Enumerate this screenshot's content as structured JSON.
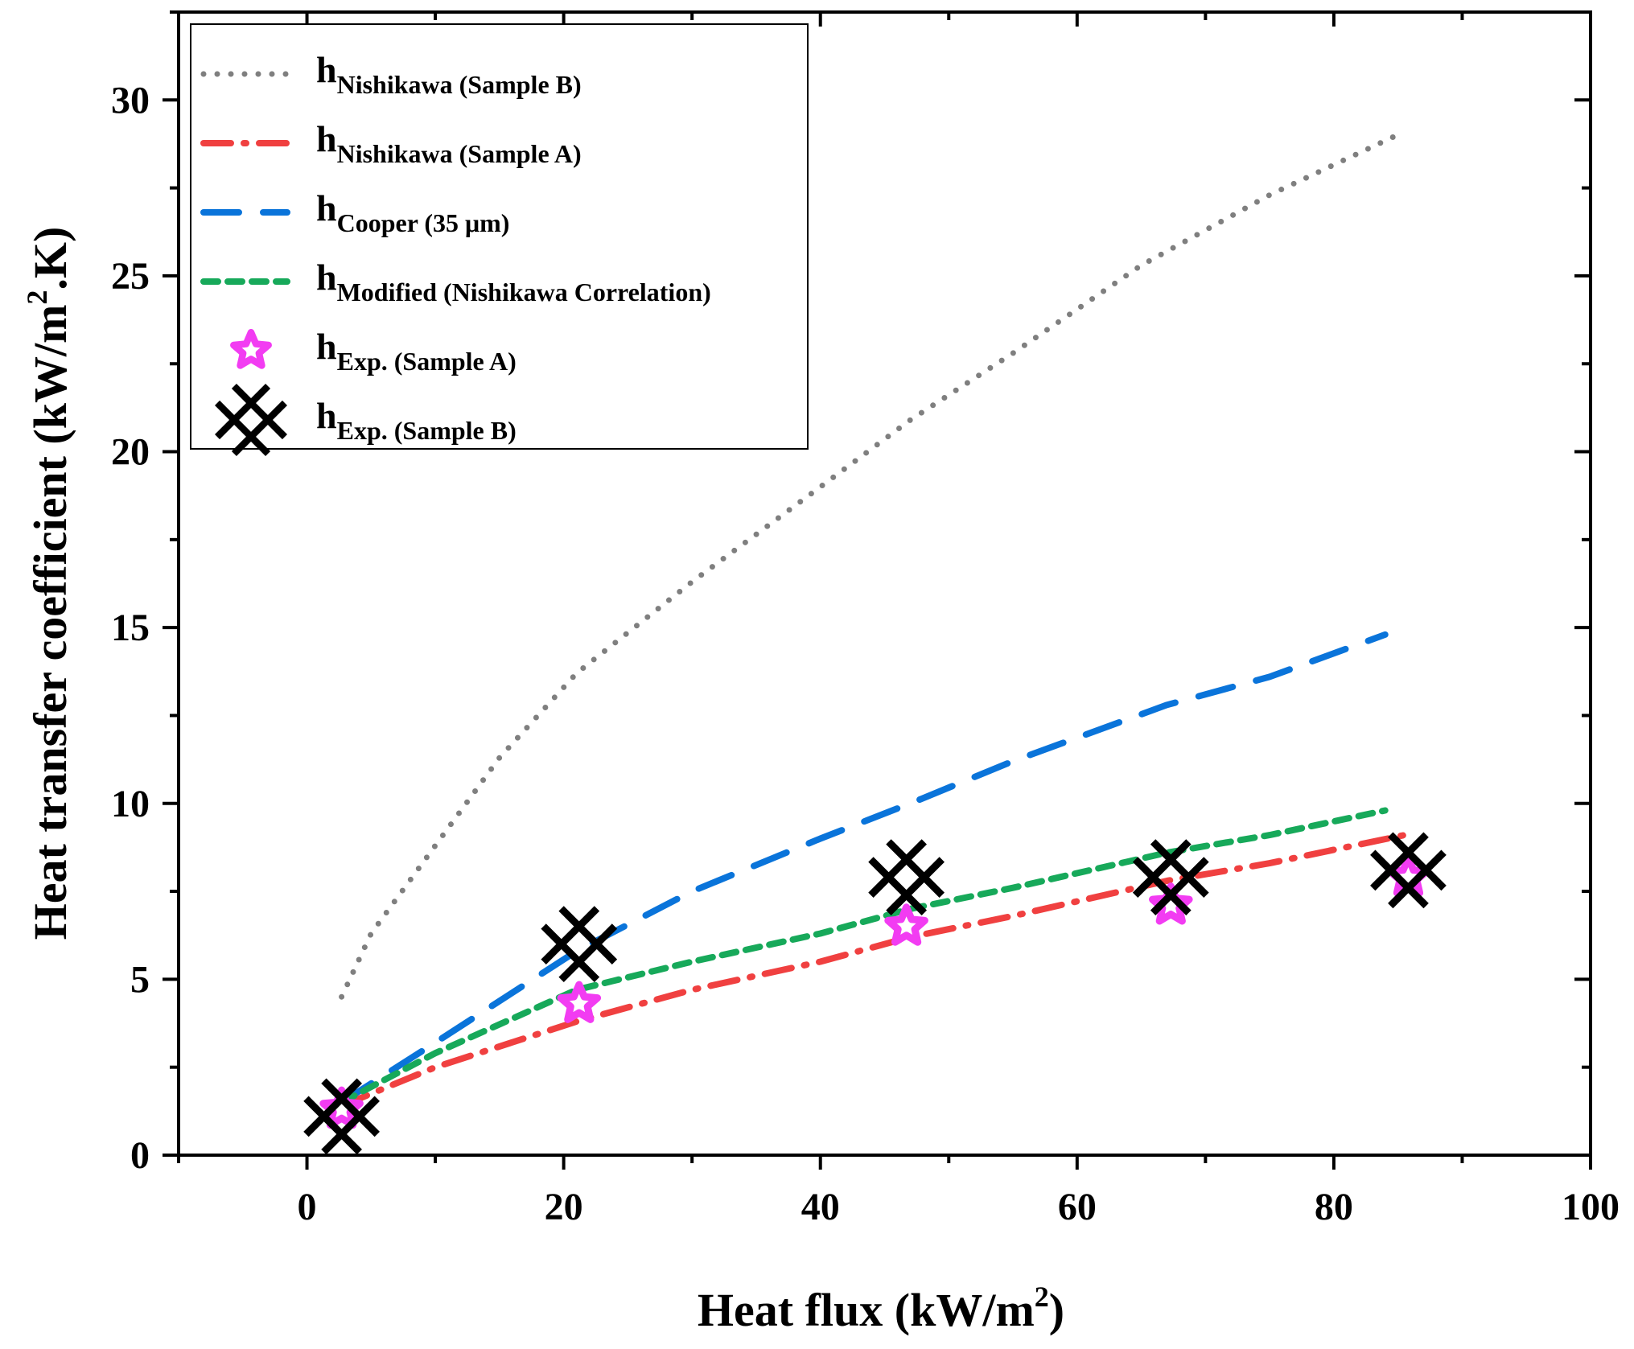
{
  "chart_data": {
    "type": "line",
    "xlabel": {
      "main": "Heat flux (kW/m",
      "sup": "2",
      "tail": ")"
    },
    "ylabel": {
      "main": "Heat transfer coefficient (kW/m",
      "sup": "2",
      "tail": ".K)"
    },
    "xlim": [
      -10,
      100
    ],
    "ylim": [
      0,
      32.5
    ],
    "xticks": [
      0,
      20,
      40,
      60,
      80,
      100
    ],
    "yticks": [
      0,
      5,
      10,
      15,
      20,
      25,
      30
    ],
    "grid": false,
    "legend_position": "top-left",
    "series": [
      {
        "name": "hNishikawa (Sample B)",
        "label_main": "h",
        "label_sub": "Nishikawa (Sample B)",
        "kind": "line",
        "style": "dotted",
        "color": "#7f7f7f",
        "x": [
          2.7,
          5,
          10,
          15,
          21,
          30,
          40,
          47,
          55,
          65,
          75,
          85.5
        ],
        "y": [
          4.5,
          6.3,
          8.8,
          11.3,
          13.7,
          16.3,
          19.0,
          20.9,
          22.8,
          25.3,
          27.3,
          29.1
        ]
      },
      {
        "name": "hNishikawa (Sample A)",
        "label_main": "h",
        "label_sub": "Nishikawa (Sample A)",
        "kind": "line",
        "style": "dashdot",
        "color": "#f04040",
        "x": [
          2.7,
          10,
          21,
          30,
          40,
          47,
          55,
          67,
          75,
          85.5
        ],
        "y": [
          1.4,
          2.5,
          3.8,
          4.7,
          5.5,
          6.2,
          6.8,
          7.8,
          8.3,
          9.1
        ]
      },
      {
        "name": "hCooper (35 μm)",
        "label_main": "h",
        "label_sub": "Cooper (35 μm)",
        "kind": "line",
        "style": "longdash",
        "color": "#0a74da",
        "x": [
          2.7,
          10,
          21,
          30,
          40,
          47,
          55,
          67,
          75,
          84
        ],
        "y": [
          1.5,
          3.2,
          5.8,
          7.5,
          9.0,
          10.0,
          11.2,
          12.8,
          13.6,
          14.8
        ]
      },
      {
        "name": "hModified (Nishikawa Correlation)",
        "label_main": "h",
        "label_sub": "Modified (Nishikawa Correlation)",
        "kind": "line",
        "style": "shortdash",
        "color": "#17a95a",
        "x": [
          2.7,
          10,
          21,
          30,
          40,
          47,
          55,
          67,
          75,
          84
        ],
        "y": [
          1.5,
          2.9,
          4.7,
          5.5,
          6.3,
          7.0,
          7.6,
          8.6,
          9.1,
          9.8
        ]
      },
      {
        "name": "hExp. (Sample A)",
        "label_main": "h",
        "label_sub": "Exp. (Sample A)",
        "kind": "scatter",
        "marker": "star",
        "color": "#f23cf2",
        "x": [
          2.7,
          21.2,
          46.7,
          67.3,
          85.8
        ],
        "y": [
          1.3,
          4.3,
          6.5,
          7.1,
          7.9
        ]
      },
      {
        "name": "hExp. (Sample B)",
        "label_main": "h",
        "label_sub": "Exp. (Sample B)",
        "kind": "scatter",
        "marker": "crossx",
        "color": "#000000",
        "x": [
          2.7,
          21.2,
          46.7,
          67.3,
          85.8
        ],
        "y": [
          1.1,
          6.0,
          7.9,
          7.9,
          8.1
        ]
      }
    ]
  }
}
